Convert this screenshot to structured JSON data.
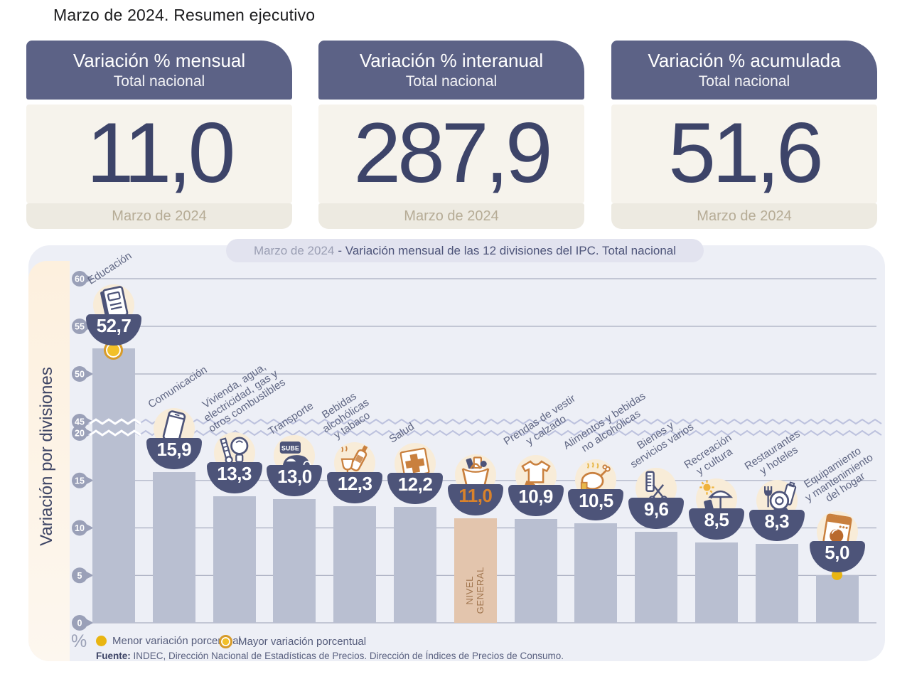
{
  "page_title": "Marzo de 2024. Resumen ejecutivo",
  "cards": [
    {
      "title": "Variación % mensual",
      "subtitle": "Total nacional",
      "value": "11,0",
      "period": "Marzo de 2024"
    },
    {
      "title": "Variación % interanual",
      "subtitle": "Total nacional",
      "value": "287,9",
      "period": "Marzo de 2024"
    },
    {
      "title": "Variación % acumulada",
      "subtitle": "Total nacional",
      "value": "51,6",
      "period": "Marzo de 2024"
    }
  ],
  "chart_header": {
    "prefix": "Marzo de 2024",
    "rest": "- Variación mensual de las 12 divisiones del IPC. Total nacional"
  },
  "chart_data": {
    "type": "bar",
    "title": "Marzo de 2024 - Variación mensual de las 12 divisiones del IPC. Total nacional",
    "ylabel": "Variación por divisiones",
    "unit": "%",
    "y_ticks": [
      60,
      55,
      50,
      45,
      20,
      15,
      10,
      5,
      0
    ],
    "axis_break_between": [
      20,
      45
    ],
    "ylim_segments": [
      [
        0,
        20
      ],
      [
        45,
        60
      ]
    ],
    "grid": true,
    "legend_position": "bottom",
    "categories": [
      "Educación",
      "Comunicación",
      "Vivienda, agua, electricidad, gas y otros combustibles",
      "Transporte",
      "Bebidas alcohólicas y tabaco",
      "Salud",
      "Nivel general",
      "Prendas de vestir y calzado",
      "Alimentos y bebidas no alcohólicas",
      "Bienes y servicios varios",
      "Recreación y cultura",
      "Restaurantes y hoteles",
      "Equipamiento y mantenimiento del hogar"
    ],
    "category_lines": [
      [
        "Educación"
      ],
      [
        "Comunicación"
      ],
      [
        "Vivienda, agua,",
        "electricidad, gas y",
        "otros combustibles"
      ],
      [
        "Transporte"
      ],
      [
        "Bebidas",
        "alcohólicas",
        "y tabaco"
      ],
      [
        "Salud"
      ],
      [],
      [
        "Prendas de vestir",
        "y calzado"
      ],
      [
        "Alimentos y bebidas",
        "no alcohólicas"
      ],
      [
        "Bienes y",
        "servicios varios"
      ],
      [
        "Recreación",
        "y cultura"
      ],
      [
        "Restaurantes",
        "y hoteles"
      ],
      [
        "Equipamiento",
        "y mantenimiento",
        "del hogar"
      ]
    ],
    "slugs": [
      "educacion",
      "comunicacion",
      "vivienda-agua-electricidad-gas",
      "transporte",
      "bebidas-alcoholicas-tabaco",
      "salud",
      "nivel-general",
      "prendas-vestir-calzado",
      "alimentos-bebidas-no-alcoholicas",
      "bienes-servicios-varios",
      "recreacion-cultura",
      "restaurantes-hoteles",
      "equipamiento-mantenimiento-hogar"
    ],
    "icons": [
      "notebook",
      "smartphone",
      "lightbulb-key",
      "sube-card-car",
      "bottle-glass",
      "medical-cross",
      "shopping-bag",
      "tshirt-shoe",
      "roast-chicken",
      "scissors-comb",
      "umbrella-sun",
      "fork-plate",
      "washing-machine"
    ],
    "values": [
      52.7,
      15.9,
      13.3,
      13.0,
      12.3,
      12.2,
      11.0,
      10.9,
      10.5,
      9.6,
      8.5,
      8.3,
      5.0
    ],
    "value_labels": [
      "52,7",
      "15,9",
      "13,3",
      "13,0",
      "12,3",
      "12,2",
      "11,0",
      "10,9",
      "10,5",
      "9,6",
      "8,5",
      "8,3",
      "5,0"
    ],
    "highlight_index": 6,
    "highlight_bar_label": [
      "NIVEL",
      "GENERAL"
    ],
    "max_marker_index": 0,
    "min_marker_index": 12,
    "sube_card_text": "SUBE"
  },
  "legend": [
    {
      "label": "Menor variación porcentual",
      "marker": "solid-dot"
    },
    {
      "label": "Mayor variación porcentual",
      "marker": "ringed-dot"
    }
  ],
  "source": {
    "label": "Fuente:",
    "text": " INDEC, Dirección Nacional de Estadísticas de Precios. Dirección de Índices de Precios de Consumo."
  },
  "colors": {
    "header_slate": "#5c6286",
    "value_navy": "#3d4469",
    "bar": "#b9bfd1",
    "bar_highlight": "#e3c5ad",
    "bubble_navy": "#4d5479",
    "highlight_value_orange": "#d9822b",
    "marker_yellow": "#e9b512",
    "marker_ring": "#d79b2a",
    "chart_bg": "#edeff6",
    "strip_cream": "#fdf0de",
    "icon_circle_cream": "#f8ecd8",
    "accent_orange": "#c9803e"
  }
}
